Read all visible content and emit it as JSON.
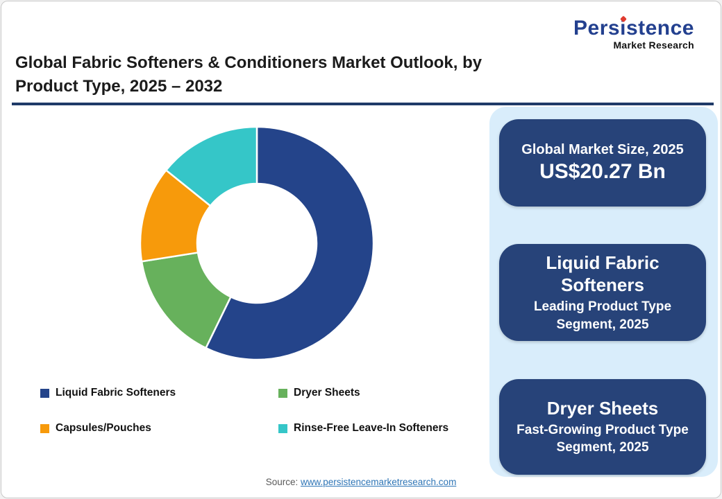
{
  "logo": {
    "brand_part1": "Pers",
    "brand_i": "i",
    "brand_part2": "stence",
    "tagline": "Market Research"
  },
  "header": {
    "title": "Global Fabric Softeners & Conditioners Market Outlook, by Product Type, 2025 – 2032"
  },
  "chart_data": {
    "type": "pie",
    "subtype": "donut",
    "title": "Global Fabric Softeners & Conditioners Market Outlook, by Product Type, 2025 – 2032",
    "start_angle_deg": 0,
    "direction": "clockwise",
    "inner_radius_ratio": 0.51,
    "unit": "% share (estimated from arc angles)",
    "segments": [
      {
        "label": "Liquid Fabric Softeners",
        "value": 57.2,
        "color": "#24448a"
      },
      {
        "label": "Dryer Sheets",
        "value": 15.3,
        "color": "#67b15c"
      },
      {
        "label": "Capsules/Pouches",
        "value": 13.3,
        "color": "#f79a0b"
      },
      {
        "label": "Rinse-Free Leave-In Softeners",
        "value": 14.2,
        "color": "#35c6c8"
      }
    ],
    "legend_position": "bottom-left, two columns"
  },
  "panel": {
    "cards": [
      {
        "label": "Global Market Size, 2025",
        "value": "US$20.27 Bn"
      },
      {
        "title": "Liquid Fabric Softeners",
        "subtitle": "Leading Product Type Segment, 2025"
      },
      {
        "title": "Dryer Sheets",
        "subtitle": "Fast-Growing Product Type Segment, 2025"
      }
    ],
    "card_color": "#274379",
    "panel_color": "#d9edfb"
  },
  "footer": {
    "source_label": "Source:",
    "source_link": "www.persistencemarketresearch.com"
  },
  "colors": {
    "accent_rule": "#1f3a68",
    "logo_navy": "#23408f",
    "logo_red": "#e03a2f",
    "link_blue": "#2e75b6"
  }
}
